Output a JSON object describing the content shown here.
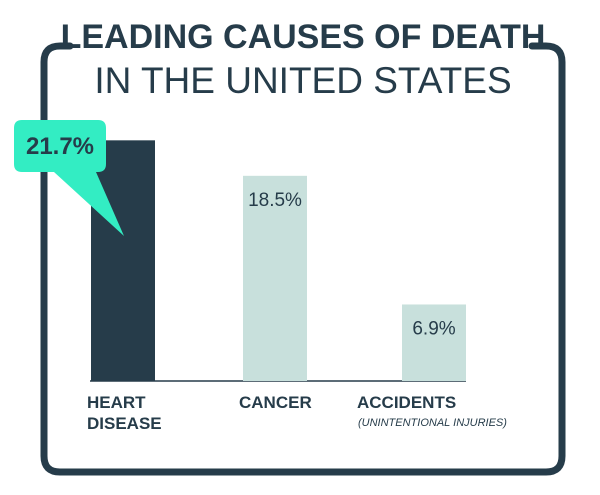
{
  "chart_data": {
    "type": "bar",
    "title_line1": "LEADING CAUSES OF DEATH",
    "title_line2": "IN THE UNITED STATES",
    "categories": [
      {
        "label_lines": [
          "HEART",
          "DISEASE"
        ],
        "sublabel": ""
      },
      {
        "label_lines": [
          "CANCER"
        ],
        "sublabel": ""
      },
      {
        "label_lines": [
          "ACCIDENTS"
        ],
        "sublabel": "(UNINTENTIONAL INJURIES)"
      }
    ],
    "values": [
      21.7,
      18.5,
      6.9
    ],
    "value_labels": [
      "21.7%",
      "18.5%",
      "6.9%"
    ],
    "ylim": [
      0,
      22
    ],
    "grid": false,
    "highlight_index": 0,
    "colors": {
      "frame": "#263c4a",
      "highlight_bar": "#263c4a",
      "bar": "#c8e0dc",
      "callout": "#33edc3",
      "text": "#263c4a"
    }
  }
}
